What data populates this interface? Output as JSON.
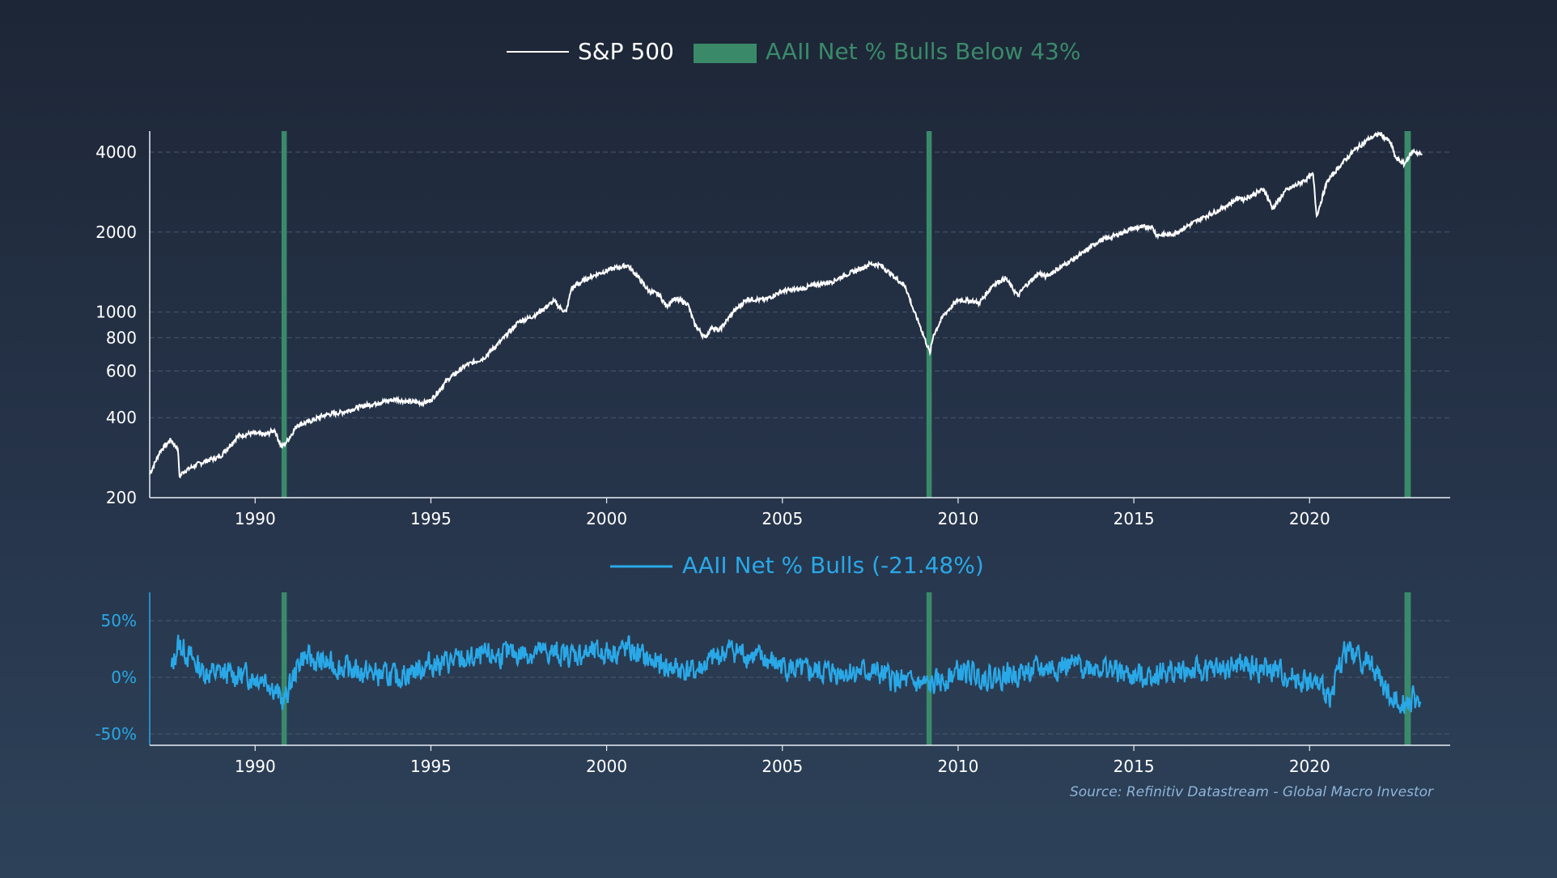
{
  "colors": {
    "sp500_line": "#ffffff",
    "bull_bar": "#3a8a6a",
    "net_bulls_line": "#29a8e8",
    "axis": "#e8eef5",
    "grid": "#4a5a70",
    "lower_tick": "#29a8e8"
  },
  "chart_data": [
    {
      "type": "line",
      "title": "",
      "legend": [
        {
          "label": "S&P 500",
          "kind": "line",
          "color": "#ffffff"
        },
        {
          "label": "AAII Net % Bulls Below 43%",
          "kind": "bar",
          "color": "#3a8a6a"
        }
      ],
      "legend_position": "top-center",
      "y_scale": "log",
      "ylim": [
        200,
        4800
      ],
      "xlim": [
        1987.0,
        2024.0
      ],
      "x_ticks": [
        "1990",
        "1995",
        "2000",
        "2005",
        "2010",
        "2015",
        "2020"
      ],
      "y_ticks": [
        "200",
        "400",
        "600",
        "800",
        "1000",
        "2000",
        "4000"
      ],
      "grid": "horizontal dashed",
      "highlight_bands": [
        {
          "from": 1990.75,
          "to": 1990.9
        },
        {
          "from": 2009.1,
          "to": 2009.25
        },
        {
          "from": 2022.7,
          "to": 2022.88
        }
      ],
      "series": [
        {
          "name": "S&P 500",
          "x": [
            1987.0,
            1987.3,
            1987.6,
            1987.8,
            1987.85,
            1987.95,
            1988.3,
            1988.6,
            1989.0,
            1989.5,
            1989.9,
            1990.3,
            1990.55,
            1990.75,
            1990.9,
            1991.2,
            1991.5,
            1992.0,
            1992.5,
            1993.0,
            1993.5,
            1994.0,
            1994.3,
            1994.8,
            1995.0,
            1995.5,
            1996.0,
            1996.5,
            1997.0,
            1997.5,
            1997.8,
            1998.0,
            1998.5,
            1998.7,
            1998.85,
            1999.0,
            1999.5,
            1999.8,
            2000.2,
            2000.6,
            2000.9,
            2001.2,
            2001.5,
            2001.7,
            2001.9,
            2002.3,
            2002.5,
            2002.8,
            2003.0,
            2003.2,
            2003.6,
            2004.0,
            2004.5,
            2005.0,
            2005.5,
            2006.0,
            2006.4,
            2006.8,
            2007.2,
            2007.5,
            2007.8,
            2008.2,
            2008.5,
            2008.75,
            2008.9,
            2009.2,
            2009.3,
            2009.6,
            2010.0,
            2010.4,
            2010.6,
            2011.0,
            2011.35,
            2011.7,
            2011.9,
            2012.3,
            2012.5,
            2013.0,
            2013.5,
            2014.0,
            2014.5,
            2015.0,
            2015.5,
            2015.65,
            2016.1,
            2016.5,
            2017.0,
            2017.5,
            2018.0,
            2018.1,
            2018.7,
            2018.95,
            2019.3,
            2019.8,
            2020.1,
            2020.2,
            2020.5,
            2020.9,
            2021.3,
            2021.7,
            2022.0,
            2022.3,
            2022.45,
            2022.7,
            2022.8,
            2022.95,
            2023.2
          ],
          "values": [
            245,
            300,
            330,
            305,
            240,
            250,
            265,
            275,
            285,
            340,
            350,
            345,
            360,
            310,
            325,
            375,
            385,
            410,
            420,
            440,
            455,
            470,
            460,
            455,
            465,
            560,
            630,
            670,
            780,
            920,
            950,
            980,
            1100,
            1030,
            1000,
            1230,
            1350,
            1400,
            1460,
            1500,
            1350,
            1200,
            1160,
            1050,
            1120,
            1080,
            900,
            800,
            880,
            850,
            1000,
            1120,
            1110,
            1200,
            1220,
            1270,
            1300,
            1380,
            1450,
            1520,
            1500,
            1350,
            1250,
            1000,
            900,
            700,
            820,
            980,
            1110,
            1100,
            1080,
            1270,
            1340,
            1150,
            1250,
            1400,
            1360,
            1500,
            1650,
            1850,
            1950,
            2070,
            2100,
            1950,
            1960,
            2100,
            2280,
            2450,
            2700,
            2650,
            2900,
            2450,
            2850,
            3100,
            3300,
            2300,
            3100,
            3600,
            4100,
            4500,
            4700,
            4350,
            3800,
            3600,
            3800,
            4050,
            3900
          ]
        }
      ]
    },
    {
      "type": "line",
      "title": "",
      "legend": [
        {
          "label": "AAII Net % Bulls (-21.48%)",
          "kind": "line",
          "color": "#29a8e8"
        }
      ],
      "legend_position": "top-center",
      "ylim": [
        -0.6,
        0.75
      ],
      "xlim": [
        1987.0,
        2024.0
      ],
      "x_ticks": [
        "1990",
        "1995",
        "2000",
        "2005",
        "2010",
        "2015",
        "2020"
      ],
      "y_ticks": [
        "50%",
        "0%",
        "-50%"
      ],
      "y_tick_values": [
        0.5,
        0.0,
        -0.5
      ],
      "grid": "horizontal dashed",
      "highlight_bands": [
        {
          "from": 1990.75,
          "to": 1990.9
        },
        {
          "from": 2009.1,
          "to": 2009.25
        },
        {
          "from": 2022.7,
          "to": 2022.88
        }
      ],
      "series": [
        {
          "name": "AAII Net % Bulls",
          "last_value_label": "-21.48%",
          "x_start": 1987.6,
          "x_end": 2023.15,
          "anchors_x": [
            1987.6,
            1987.8,
            1988.5,
            1989.5,
            1990.3,
            1990.8,
            1991.3,
            1992.0,
            1993.0,
            1994.0,
            1995.0,
            1996.0,
            1997.0,
            1998.0,
            1999.0,
            2000.0,
            2000.6,
            2001.5,
            2002.5,
            2003.5,
            2004.5,
            2005.5,
            2006.5,
            2007.5,
            2008.5,
            2009.2,
            2010.0,
            2011.0,
            2012.0,
            2013.0,
            2014.0,
            2015.0,
            2016.0,
            2017.0,
            2018.0,
            2019.0,
            2020.0,
            2020.6,
            2021.0,
            2021.8,
            2022.3,
            2022.8,
            2023.15
          ],
          "anchors_y": [
            0.05,
            0.3,
            0.05,
            0.02,
            0.0,
            -0.22,
            0.18,
            0.12,
            0.05,
            0.0,
            0.12,
            0.15,
            0.2,
            0.22,
            0.2,
            0.22,
            0.25,
            0.1,
            0.05,
            0.25,
            0.15,
            0.05,
            0.05,
            0.05,
            -0.05,
            -0.08,
            0.05,
            0.0,
            0.05,
            0.1,
            0.1,
            0.0,
            0.05,
            0.05,
            0.1,
            0.05,
            -0.05,
            -0.15,
            0.25,
            0.1,
            -0.2,
            -0.2,
            -0.2148
          ],
          "noise_amplitude": 0.15
        }
      ]
    }
  ],
  "source": "Source: Refinitiv Datastream - Global Macro Investor"
}
